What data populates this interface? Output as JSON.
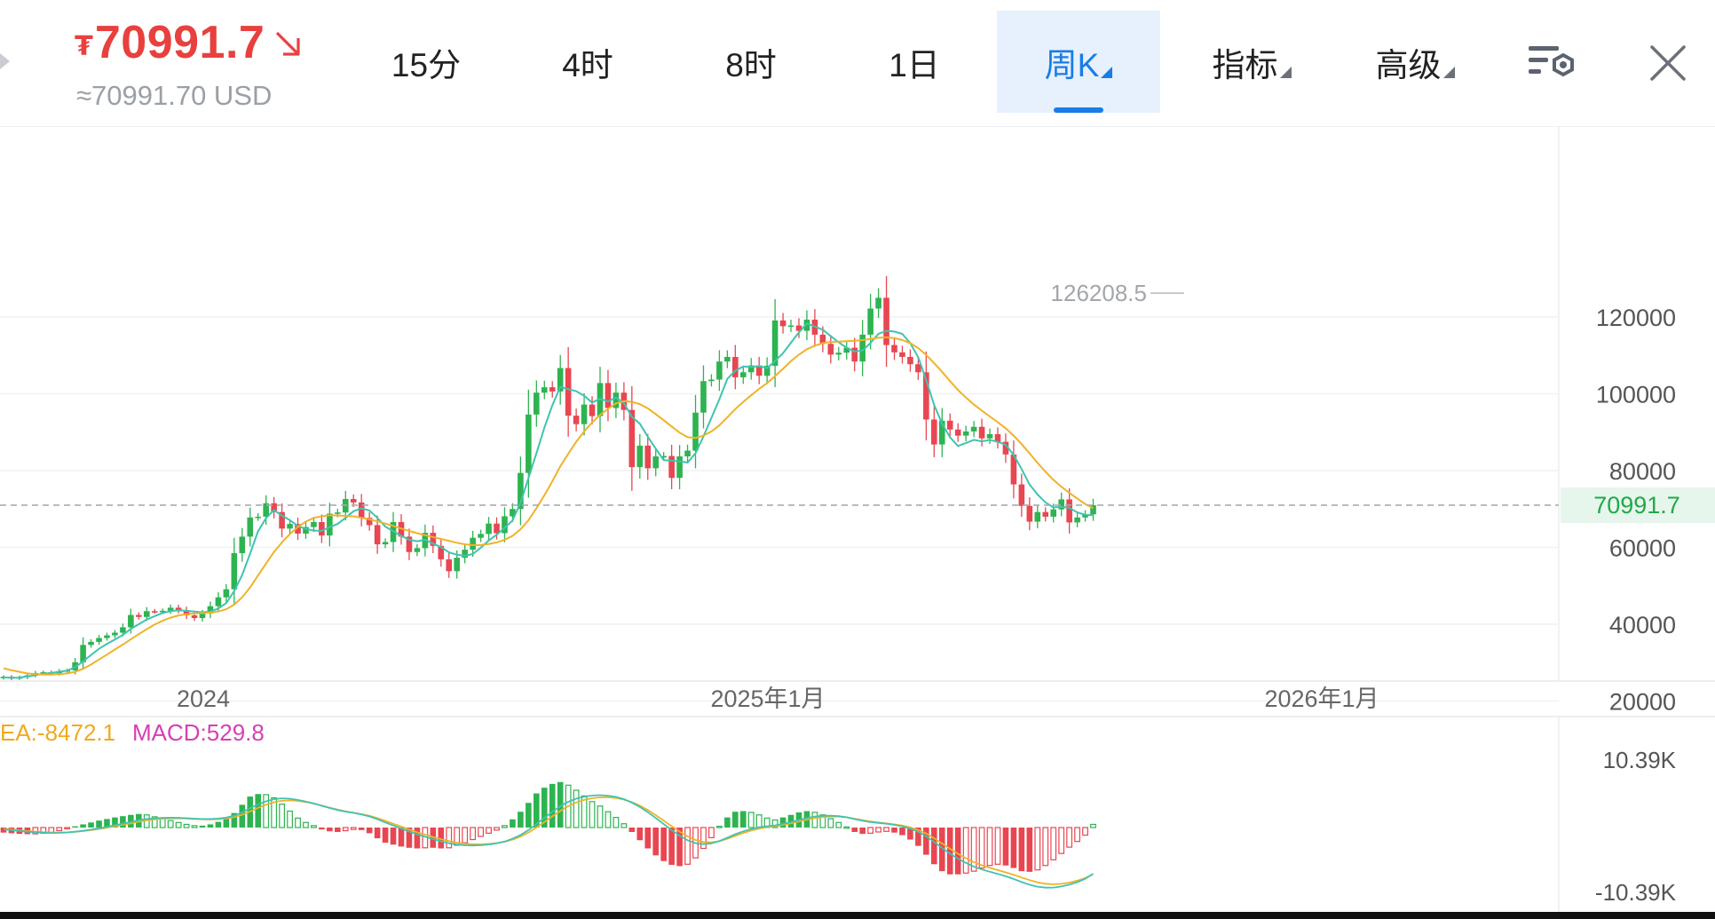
{
  "header": {
    "currency_symbol": "₮",
    "price": "70991.7",
    "usd_equiv": "≈70991.70 USD",
    "trend": "down"
  },
  "tabs": [
    {
      "label": "15分",
      "active": false,
      "dropdown": false
    },
    {
      "label": "4时",
      "active": false,
      "dropdown": false
    },
    {
      "label": "8时",
      "active": false,
      "dropdown": false
    },
    {
      "label": "1日",
      "active": false,
      "dropdown": false
    },
    {
      "label": "周K",
      "active": true,
      "dropdown": true
    },
    {
      "label": "指标",
      "active": false,
      "dropdown": true
    },
    {
      "label": "高级",
      "active": false,
      "dropdown": true
    }
  ],
  "icons": {
    "settings": "chart-settings-icon",
    "close": "close-icon",
    "trend": "down-right-arrow-icon"
  },
  "colors": {
    "up": "#2eb351",
    "down": "#e84651",
    "price_red": "#e8403e",
    "ma_fast": "#40c3b0",
    "ma_slow": "#f0b229",
    "macd_label": "#d63fb6",
    "active_tab": "#1a7ce6"
  },
  "chart_data": {
    "type": "candlestick",
    "interval": "周K",
    "y_ticks": [
      "120000",
      "100000",
      "80000",
      "60000",
      "40000",
      "20000"
    ],
    "ylim": [
      12000,
      146000
    ],
    "x_labels": [
      "2024",
      "2025年1月",
      "2026年1月"
    ],
    "current_price_label": "70991.7",
    "high_marker": {
      "label": "126208.5",
      "value": 126208.5
    },
    "legend": {
      "dea": "EA:-8472.1",
      "macd": "MACD:529.8"
    },
    "macd_ticks": {
      "top": "10.39K",
      "bottom": "-10.39K"
    },
    "macd_ylim": [
      -10390,
      10390
    ],
    "candle_closes": [
      26300,
      25900,
      26200,
      26700,
      27300,
      27500,
      27200,
      27800,
      28000,
      30100,
      34600,
      35400,
      36400,
      37100,
      37800,
      39200,
      42400,
      41900,
      43400,
      43300,
      43500,
      44300,
      43600,
      42300,
      41600,
      42800,
      44700,
      47000,
      49100,
      58500,
      62800,
      67800,
      68000,
      71500,
      69200,
      64900,
      66100,
      63600,
      65300,
      66600,
      63100,
      68800,
      69100,
      72600,
      71700,
      67700,
      65800,
      60800,
      61400,
      66600,
      62800,
      58800,
      59800,
      63800,
      60400,
      56900,
      53800,
      57300,
      59400,
      62500,
      63500,
      66200,
      63700,
      68100,
      70000,
      79400,
      94600,
      100300,
      101700,
      100600,
      106700,
      94300,
      92100,
      97200,
      94200,
      102800,
      96300,
      100300,
      95800,
      80900,
      86500,
      80600,
      83700,
      83800,
      78100,
      83700,
      85200,
      95100,
      103300,
      103700,
      108400,
      109600,
      104300,
      105600,
      107400,
      104700,
      107300,
      119100,
      117600,
      117800,
      116400,
      119300,
      115400,
      113000,
      110200,
      110700,
      112000,
      108400,
      115400,
      122200,
      125000,
      112700,
      110800,
      109600,
      107700,
      105600,
      93300,
      86800,
      93000,
      90700,
      89100,
      90200,
      91400,
      88400,
      89500,
      87500,
      84200,
      76400,
      70800,
      66700,
      69200,
      68000,
      69900,
      72500,
      66500,
      67800,
      68600,
      70991.7
    ],
    "ma_fast_values": [
      26200,
      26000,
      26100,
      26400,
      26700,
      27100,
      27300,
      27600,
      27900,
      28800,
      30300,
      32000,
      33600,
      34900,
      36000,
      37200,
      38800,
      40000,
      41200,
      42100,
      42900,
      43400,
      43600,
      43500,
      43300,
      43100,
      43300,
      44100,
      45500,
      48600,
      52800,
      58400,
      64200,
      67600,
      69700,
      68300,
      67100,
      65600,
      64800,
      64400,
      64300,
      65300,
      66100,
      67700,
      69400,
      70200,
      69600,
      67700,
      65400,
      64200,
      63000,
      62000,
      61600,
      62000,
      61000,
      60100,
      58700,
      58100,
      57800,
      58300,
      59900,
      61800,
      63300,
      65100,
      67000,
      71700,
      78100,
      84500,
      91200,
      97000,
      101800,
      101200,
      100700,
      99500,
      97700,
      98700,
      98000,
      99000,
      97600,
      94000,
      92200,
      88800,
      85700,
      82700,
      82600,
      82400,
      82100,
      84500,
      88900,
      93700,
      98600,
      103900,
      106000,
      107100,
      107000,
      107200,
      106700,
      108500,
      110600,
      113300,
      116000,
      118300,
      117500,
      116700,
      115000,
      113400,
      112000,
      111000,
      111300,
      113200,
      115600,
      116400,
      116200,
      115600,
      113200,
      109500,
      103600,
      97100,
      92200,
      88700,
      86400,
      87200,
      88000,
      87600,
      88000,
      87500,
      86700,
      84100,
      80400,
      76400,
      73800,
      71700,
      70400,
      70600,
      70300,
      69100,
      68500,
      68400
    ],
    "ma_slow_values": [
      28500,
      28000,
      27600,
      27200,
      27000,
      26900,
      26900,
      27000,
      27200,
      27600,
      28400,
      29500,
      30800,
      32100,
      33400,
      34700,
      36100,
      37400,
      38700,
      39900,
      40900,
      41700,
      42300,
      42600,
      42800,
      42900,
      43000,
      43300,
      43900,
      45100,
      47000,
      49600,
      52700,
      55800,
      58800,
      61300,
      63500,
      65300,
      66700,
      67700,
      68100,
      68400,
      68300,
      68200,
      68100,
      67700,
      67300,
      66800,
      66200,
      65600,
      64900,
      64300,
      63700,
      63200,
      62700,
      62200,
      61700,
      61200,
      60800,
      60600,
      60600,
      60900,
      61300,
      62000,
      63000,
      64700,
      67100,
      70200,
      73600,
      77200,
      81100,
      84400,
      87500,
      90200,
      92500,
      94500,
      96100,
      97500,
      98100,
      97900,
      97300,
      96200,
      94700,
      93100,
      91500,
      89900,
      88700,
      88500,
      89100,
      90200,
      91800,
      93900,
      96000,
      97900,
      99600,
      101300,
      102800,
      104600,
      106500,
      108500,
      110200,
      111600,
      112500,
      113200,
      113500,
      113600,
      113700,
      113800,
      114000,
      114300,
      114600,
      114700,
      114500,
      114000,
      113200,
      111900,
      110100,
      108000,
      105700,
      103300,
      101000,
      99000,
      97200,
      95600,
      94100,
      92600,
      91000,
      89100,
      86900,
      84500,
      82000,
      79700,
      77600,
      75800,
      74200,
      72700,
      71300,
      70200
    ],
    "macd_hist_estimated": [
      -800,
      -900,
      -1000,
      -1050,
      -1000,
      -900,
      -750,
      -500,
      -150,
      200,
      500,
      800,
      1100,
      1350,
      1600,
      1800,
      2000,
      2150,
      2000,
      1700,
      1400,
      1100,
      800,
      500,
      300,
      300,
      500,
      900,
      1400,
      2300,
      3600,
      4900,
      5300,
      5200,
      4700,
      3700,
      2600,
      1500,
      800,
      300,
      -300,
      -600,
      -700,
      -500,
      -300,
      -400,
      -900,
      -1700,
      -2400,
      -2700,
      -3000,
      -3200,
      -3300,
      -3200,
      -3200,
      -3300,
      -3200,
      -2800,
      -2400,
      -1900,
      -1400,
      -900,
      -400,
      300,
      1300,
      2500,
      3900,
      5400,
      6300,
      6900,
      7200,
      6700,
      5900,
      5000,
      4100,
      3400,
      2500,
      1600,
      600,
      -700,
      -2000,
      -3300,
      -4400,
      -5300,
      -5900,
      -6100,
      -5800,
      -4800,
      -3300,
      -1600,
      200,
      1600,
      2500,
      2600,
      2400,
      2000,
      1500,
      1200,
      1600,
      2000,
      2400,
      2600,
      2400,
      2000,
      1400,
      800,
      100,
      -700,
      -1000,
      -900,
      -700,
      -600,
      -800,
      -1200,
      -1900,
      -2900,
      -4300,
      -5800,
      -6900,
      -7400,
      -7400,
      -7200,
      -6900,
      -6400,
      -6000,
      -5800,
      -6000,
      -6400,
      -6900,
      -7000,
      -6700,
      -6000,
      -5100,
      -4100,
      -3100,
      -2200,
      -1200,
      500
    ]
  }
}
